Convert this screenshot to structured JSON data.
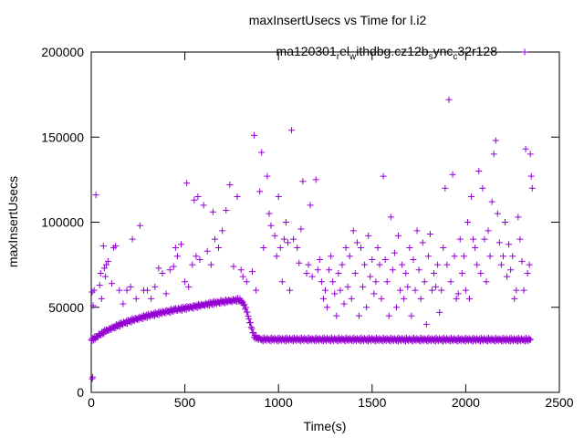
{
  "chart_data": {
    "type": "scatter",
    "title": "maxInsertUsecs vs Time for l.i2",
    "xlabel": "Time(s)",
    "ylabel": "maxInsertUsecs",
    "xlim": [
      0,
      2500
    ],
    "ylim": [
      0,
      200000
    ],
    "x_ticks": [
      "0",
      "500",
      "1000",
      "1500",
      "2000",
      "2500"
    ],
    "y_ticks": [
      "0",
      "50000",
      "100000",
      "150000",
      "200000"
    ],
    "grid": false,
    "legend_position": "top-right",
    "series_color": "#9400d3",
    "series": [
      {
        "name": "ma120301_rel_withdbg.cz12b_sync_c32r128",
        "legend_parts": [
          {
            "text": "ma120301",
            "sub": false
          },
          {
            "text": "r",
            "sub": true
          },
          {
            "text": "el",
            "sub": false
          },
          {
            "text": "w",
            "sub": true
          },
          {
            "text": "ithdbg.cz12b",
            "sub": false
          },
          {
            "text": "s",
            "sub": true
          },
          {
            "text": "ync",
            "sub": false
          },
          {
            "text": "c",
            "sub": true
          },
          {
            "text": "32r128",
            "sub": false
          }
        ],
        "band": [
          [
            0,
            31000
          ],
          [
            20,
            32000
          ],
          [
            40,
            33500
          ],
          [
            60,
            35000
          ],
          [
            80,
            36200
          ],
          [
            100,
            37300
          ],
          [
            150,
            39800
          ],
          [
            200,
            41800
          ],
          [
            250,
            43500
          ],
          [
            300,
            45000
          ],
          [
            350,
            46300
          ],
          [
            400,
            47500
          ],
          [
            450,
            48500
          ],
          [
            500,
            49500
          ],
          [
            550,
            50500
          ],
          [
            600,
            51500
          ],
          [
            650,
            52500
          ],
          [
            700,
            53300
          ],
          [
            750,
            54000
          ],
          [
            790,
            54500
          ],
          [
            810,
            53000
          ],
          [
            830,
            48000
          ],
          [
            850,
            40000
          ],
          [
            870,
            33000
          ],
          [
            900,
            31200
          ],
          [
            2350,
            31000
          ]
        ],
        "points": [
          [
            5,
            8000
          ],
          [
            8,
            9000
          ],
          [
            5,
            59000
          ],
          [
            10,
            51000
          ],
          [
            15,
            60000
          ],
          [
            25,
            116000
          ],
          [
            45,
            63000
          ],
          [
            50,
            70000
          ],
          [
            55,
            55000
          ],
          [
            65,
            86000
          ],
          [
            70,
            73000
          ],
          [
            75,
            68000
          ],
          [
            80,
            75000
          ],
          [
            90,
            77000
          ],
          [
            110,
            64000
          ],
          [
            120,
            85000
          ],
          [
            130,
            86000
          ],
          [
            150,
            60000
          ],
          [
            170,
            52000
          ],
          [
            190,
            60000
          ],
          [
            210,
            62000
          ],
          [
            220,
            90000
          ],
          [
            240,
            55000
          ],
          [
            260,
            98000
          ],
          [
            280,
            60000
          ],
          [
            300,
            60000
          ],
          [
            320,
            55000
          ],
          [
            340,
            62000
          ],
          [
            360,
            73000
          ],
          [
            380,
            70000
          ],
          [
            400,
            58000
          ],
          [
            420,
            72000
          ],
          [
            440,
            74000
          ],
          [
            450,
            85000
          ],
          [
            460,
            80000
          ],
          [
            480,
            87000
          ],
          [
            500,
            65000
          ],
          [
            510,
            123000
          ],
          [
            520,
            62000
          ],
          [
            540,
            75000
          ],
          [
            550,
            113000
          ],
          [
            560,
            80000
          ],
          [
            570,
            115000
          ],
          [
            580,
            78000
          ],
          [
            600,
            110000
          ],
          [
            620,
            83000
          ],
          [
            640,
            75000
          ],
          [
            650,
            106000
          ],
          [
            660,
            90000
          ],
          [
            680,
            85000
          ],
          [
            700,
            95000
          ],
          [
            720,
            107000
          ],
          [
            740,
            122000
          ],
          [
            760,
            74000
          ],
          [
            780,
            115000
          ],
          [
            800,
            72000
          ],
          [
            810,
            68000
          ],
          [
            830,
            65000
          ],
          [
            860,
            71000
          ],
          [
            870,
            151000
          ],
          [
            880,
            60000
          ],
          [
            900,
            118000
          ],
          [
            910,
            141000
          ],
          [
            920,
            85000
          ],
          [
            940,
            127000
          ],
          [
            950,
            105000
          ],
          [
            960,
            98000
          ],
          [
            980,
            92000
          ],
          [
            990,
            80000
          ],
          [
            1000,
            115000
          ],
          [
            1010,
            85000
          ],
          [
            1020,
            65000
          ],
          [
            1030,
            90000
          ],
          [
            1040,
            100000
          ],
          [
            1050,
            88000
          ],
          [
            1060,
            60000
          ],
          [
            1070,
            154000
          ],
          [
            1080,
            90000
          ],
          [
            1100,
            85000
          ],
          [
            1110,
            76000
          ],
          [
            1120,
            96000
          ],
          [
            1130,
            124000
          ],
          [
            1150,
            70000
          ],
          [
            1160,
            75000
          ],
          [
            1170,
            110000
          ],
          [
            1180,
            68000
          ],
          [
            1200,
            125000
          ],
          [
            1210,
            72000
          ],
          [
            1220,
            78000
          ],
          [
            1230,
            65000
          ],
          [
            1240,
            55000
          ],
          [
            1250,
            60000
          ],
          [
            1260,
            50000
          ],
          [
            1270,
            72000
          ],
          [
            1280,
            80000
          ],
          [
            1290,
            65000
          ],
          [
            1300,
            58000
          ],
          [
            1310,
            45000
          ],
          [
            1320,
            70000
          ],
          [
            1330,
            60000
          ],
          [
            1340,
            75000
          ],
          [
            1350,
            52000
          ],
          [
            1360,
            85000
          ],
          [
            1370,
            62000
          ],
          [
            1380,
            80000
          ],
          [
            1390,
            55000
          ],
          [
            1400,
            95000
          ],
          [
            1410,
            70000
          ],
          [
            1420,
            88000
          ],
          [
            1430,
            45000
          ],
          [
            1440,
            85000
          ],
          [
            1450,
            62000
          ],
          [
            1460,
            75000
          ],
          [
            1470,
            50000
          ],
          [
            1480,
            92000
          ],
          [
            1490,
            68000
          ],
          [
            1500,
            78000
          ],
          [
            1510,
            58000
          ],
          [
            1520,
            65000
          ],
          [
            1530,
            85000
          ],
          [
            1540,
            75000
          ],
          [
            1550,
            55000
          ],
          [
            1560,
            127000
          ],
          [
            1570,
            78000
          ],
          [
            1580,
            65000
          ],
          [
            1590,
            45000
          ],
          [
            1600,
            103000
          ],
          [
            1610,
            72000
          ],
          [
            1620,
            82000
          ],
          [
            1630,
            50000
          ],
          [
            1640,
            92000
          ],
          [
            1650,
            60000
          ],
          [
            1660,
            75000
          ],
          [
            1670,
            55000
          ],
          [
            1680,
            70000
          ],
          [
            1690,
            62000
          ],
          [
            1700,
            85000
          ],
          [
            1710,
            45000
          ],
          [
            1720,
            78000
          ],
          [
            1730,
            60000
          ],
          [
            1740,
            95000
          ],
          [
            1750,
            72000
          ],
          [
            1760,
            55000
          ],
          [
            1770,
            88000
          ],
          [
            1780,
            65000
          ],
          [
            1790,
            40000
          ],
          [
            1800,
            80000
          ],
          [
            1810,
            93000
          ],
          [
            1820,
            60000
          ],
          [
            1830,
            70000
          ],
          [
            1840,
            62000
          ],
          [
            1850,
            75000
          ],
          [
            1860,
            47000
          ],
          [
            1870,
            60000
          ],
          [
            1880,
            85000
          ],
          [
            1890,
            120000
          ],
          [
            1900,
            75000
          ],
          [
            1910,
            172000
          ],
          [
            1920,
            65000
          ],
          [
            1930,
            128000
          ],
          [
            1940,
            80000
          ],
          [
            1950,
            55000
          ],
          [
            1960,
            58000
          ],
          [
            1970,
            90000
          ],
          [
            1980,
            70000
          ],
          [
            1990,
            80000
          ],
          [
            2000,
            60000
          ],
          [
            2010,
            100000
          ],
          [
            2020,
            55000
          ],
          [
            2030,
            115000
          ],
          [
            2040,
            90000
          ],
          [
            2050,
            85000
          ],
          [
            2060,
            75000
          ],
          [
            2070,
            130000
          ],
          [
            2080,
            70000
          ],
          [
            2090,
            120000
          ],
          [
            2100,
            90000
          ],
          [
            2110,
            65000
          ],
          [
            2120,
            95000
          ],
          [
            2130,
            80000
          ],
          [
            2140,
            112000
          ],
          [
            2150,
            140000
          ],
          [
            2160,
            148000
          ],
          [
            2170,
            105000
          ],
          [
            2180,
            88000
          ],
          [
            2190,
            75000
          ],
          [
            2200,
            80000
          ],
          [
            2210,
            100000
          ],
          [
            2220,
            68000
          ],
          [
            2230,
            87000
          ],
          [
            2240,
            72000
          ],
          [
            2250,
            80000
          ],
          [
            2260,
            55000
          ],
          [
            2270,
            60000
          ],
          [
            2280,
            103000
          ],
          [
            2290,
            90000
          ],
          [
            2300,
            77000
          ],
          [
            2310,
            60000
          ],
          [
            2320,
            143000
          ],
          [
            2330,
            70000
          ],
          [
            2340,
            75000
          ],
          [
            2345,
            140000
          ],
          [
            2350,
            127000
          ],
          [
            2355,
            120000
          ]
        ]
      }
    ]
  }
}
